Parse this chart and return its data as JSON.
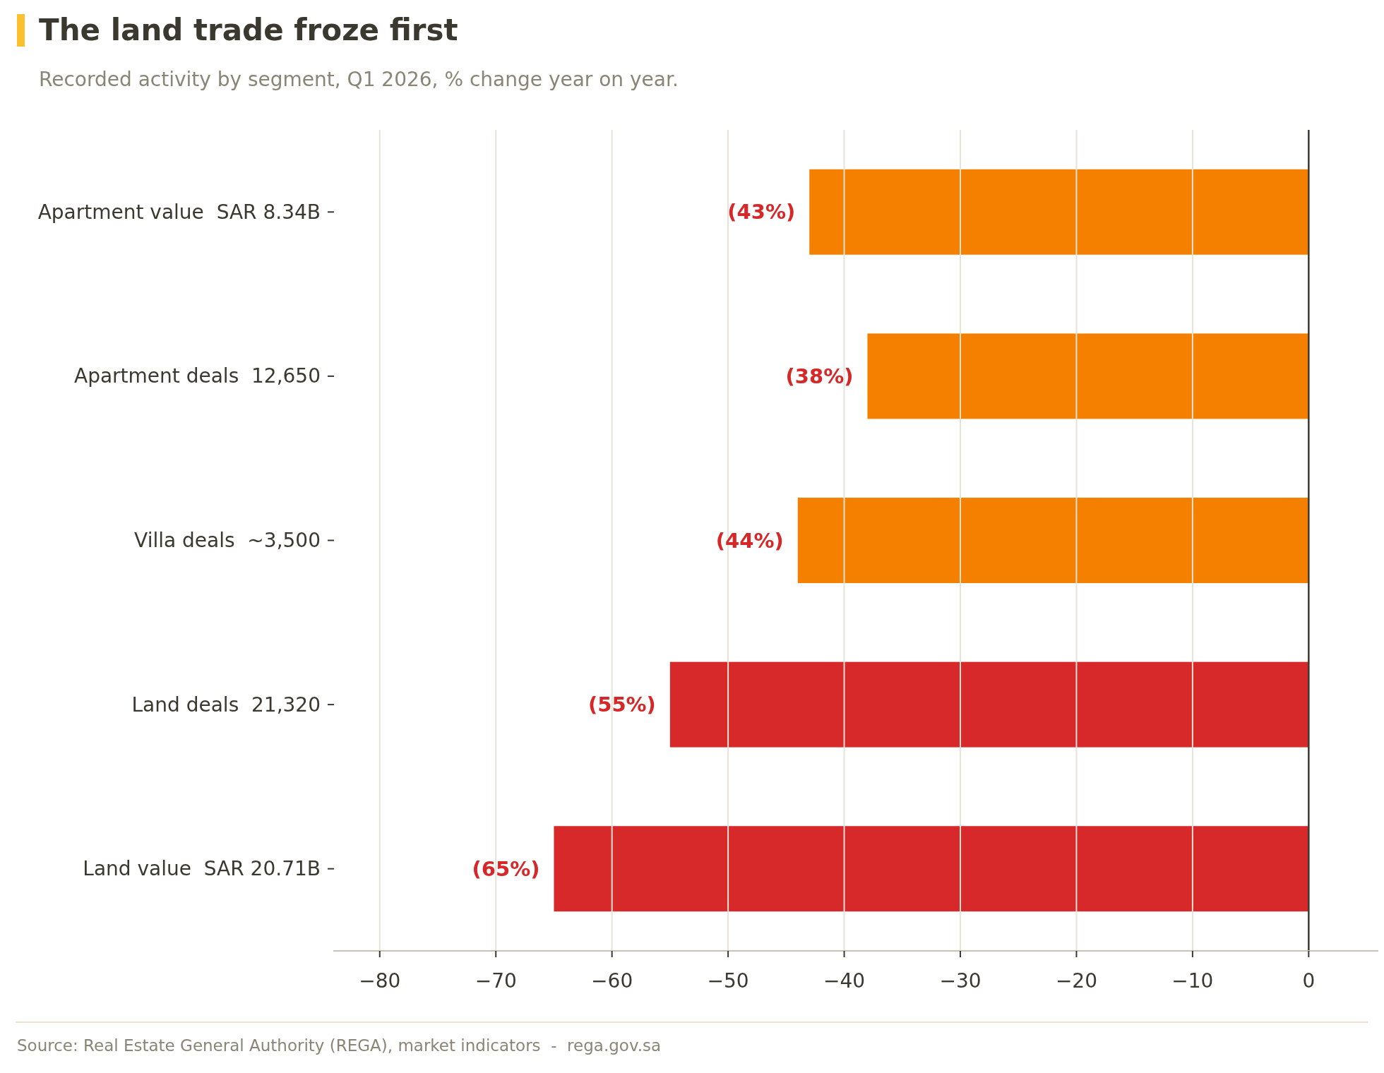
{
  "chart_data": {
    "type": "bar",
    "orientation": "horizontal",
    "title": "The land trade froze first",
    "subtitle": "Recorded activity by segment, Q1 2026, % change year on year.",
    "categories": [
      "Apartment value  SAR 8.34B",
      "Apartment deals  12,650",
      "Villa deals  ~3,500",
      "Land deals  21,320",
      "Land value  SAR 20.71B"
    ],
    "values": [
      -43,
      -38,
      -44,
      -55,
      -65
    ],
    "colors": [
      "#f58000",
      "#f58000",
      "#f58000",
      "#d7282a",
      "#d7282a"
    ],
    "value_labels": [
      "(43%)",
      "(38%)",
      "(44%)",
      "(55%)",
      "(65%)"
    ],
    "xlim": [
      -84,
      6
    ],
    "xticks": [
      -80,
      -70,
      -60,
      -50,
      -40,
      -30,
      -20,
      -10,
      0
    ],
    "grid": "x",
    "annotations": [
      "Source: Real Estate General Authority (REGA), market indicators  -  rega.gov.sa"
    ]
  }
}
